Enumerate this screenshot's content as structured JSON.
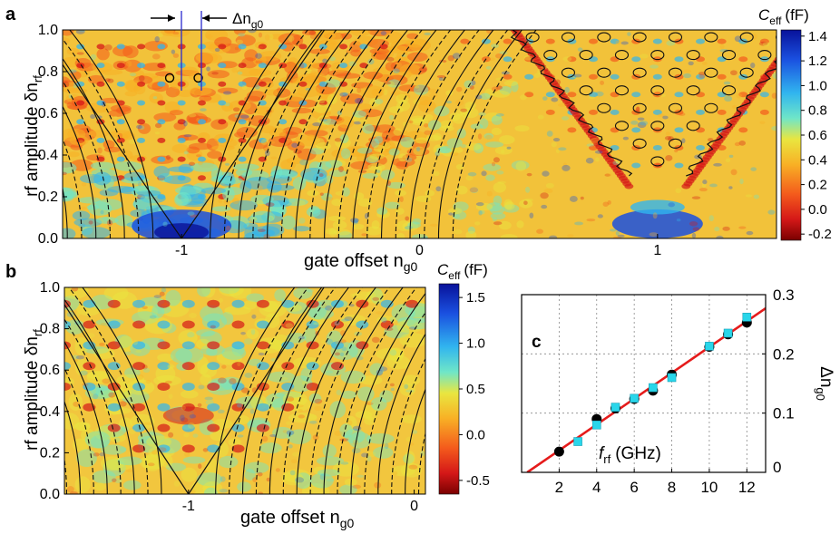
{
  "panel_labels": {
    "a": "a",
    "b": "b",
    "c": "c"
  },
  "delta_annotation": "Δn",
  "delta_annotation_sub": "g0",
  "chart_data": [
    {
      "id": "a",
      "type": "heatmap",
      "title": "",
      "xlabel": "gate offset n",
      "xlabel_sub": "g0",
      "ylabel": "rf amplitude  δn",
      "ylabel_sub": "rf",
      "xlim": [
        -1.5,
        1.5
      ],
      "ylim": [
        0,
        1.0
      ],
      "x_ticks": [
        -1,
        0,
        1
      ],
      "x_tick_labels": [
        "-1",
        "0",
        "1"
      ],
      "y_ticks": [
        0,
        0.2,
        0.4,
        0.6,
        0.8,
        1.0
      ],
      "y_tick_labels": [
        "0.0",
        "0.2",
        "0.4",
        "0.6",
        "0.8",
        "1.0"
      ],
      "colorbar": {
        "label": "C",
        "label_sub": "eff",
        "unit": "(fF)",
        "range": [
          -0.25,
          1.45
        ],
        "ticks": [
          1.4,
          1.2,
          1.0,
          0.8,
          0.6,
          0.4,
          0.2,
          0.0,
          -0.2
        ],
        "tick_labels": [
          "1.4",
          "1.2",
          "1.0",
          "0.8",
          "0.6",
          "0.4",
          "0.2",
          "0.0",
          "-0.2"
        ]
      },
      "markers_circles": [
        [
          -1.05,
          0.77
        ],
        [
          -0.93,
          0.77
        ]
      ]
    },
    {
      "id": "b",
      "type": "heatmap",
      "title": "",
      "xlabel": "gate offset n",
      "xlabel_sub": "g0",
      "ylabel": "rf amplitude  δn",
      "ylabel_sub": "rf",
      "xlim": [
        -1.55,
        0.05
      ],
      "ylim": [
        0,
        1.0
      ],
      "x_ticks": [
        -1,
        0
      ],
      "x_tick_labels": [
        "-1",
        "0"
      ],
      "y_ticks": [
        0,
        0.2,
        0.4,
        0.6,
        0.8,
        1.0
      ],
      "y_tick_labels": [
        "0.0",
        "0.2",
        "0.4",
        "0.6",
        "0.8",
        "1.0"
      ],
      "colorbar": {
        "label": "C",
        "label_sub": "eff",
        "unit": "(fF)",
        "range": [
          -0.65,
          1.65
        ],
        "ticks": [
          1.5,
          1.0,
          0.5,
          0.0,
          -0.5
        ],
        "tick_labels": [
          "1.5",
          "1.0",
          "0.5",
          "0.0",
          "-0.5"
        ]
      }
    },
    {
      "id": "c",
      "type": "scatter",
      "title": "",
      "xlabel": "f",
      "xlabel_sub": "rf",
      "xlabel_unit": "(GHz)",
      "ylabel": "Δn",
      "ylabel_sub": "g0",
      "xlim": [
        0,
        13
      ],
      "ylim": [
        0,
        0.3
      ],
      "x_ticks": [
        2,
        4,
        6,
        8,
        10,
        12
      ],
      "x_tick_labels": [
        "2",
        "4",
        "6",
        "8",
        "10",
        "12"
      ],
      "y_ticks": [
        0,
        0.1,
        0.2,
        0.3
      ],
      "y_tick_labels": [
        "0",
        "0.1",
        "0.2",
        "0.3"
      ],
      "grid": true,
      "series": [
        {
          "name": "black",
          "color": "#000000",
          "marker": "circle",
          "x": [
            2,
            4,
            5,
            6,
            7,
            8,
            10,
            11,
            12
          ],
          "y": [
            0.035,
            0.09,
            0.108,
            0.124,
            0.138,
            0.165,
            0.212,
            0.233,
            0.253
          ]
        },
        {
          "name": "cyan",
          "color": "#29d6ea",
          "marker": "square",
          "x": [
            3,
            4,
            5,
            6,
            7,
            8,
            10,
            11,
            12
          ],
          "y": [
            0.052,
            0.08,
            0.11,
            0.125,
            0.143,
            0.16,
            0.213,
            0.235,
            0.262
          ]
        },
        {
          "name": "fit",
          "color": "#e51b1b",
          "type": "line",
          "x": [
            0.3,
            13
          ],
          "y": [
            0.0,
            0.277
          ]
        }
      ]
    }
  ]
}
